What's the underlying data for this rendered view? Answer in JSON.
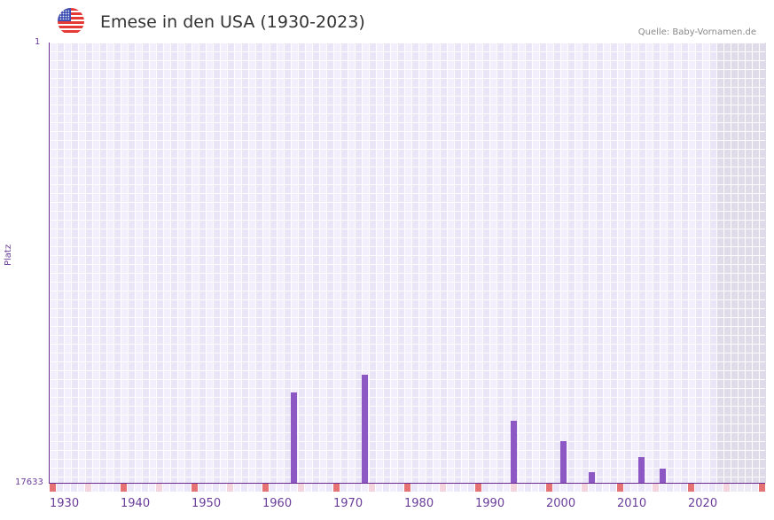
{
  "header": {
    "flag_icon": "us-flag-icon",
    "title": "Emese in den USA (1930-2023)",
    "source": "Quelle: Baby-Vornamen.de"
  },
  "colors": {
    "bar": "#8e58c4",
    "axis": "#6a2c91",
    "decade_marker": "#e57373",
    "half_decade_marker": "#f5d5dd",
    "grid_bg_a": "#f2eefb",
    "grid_bg_b": "#ebe6f7",
    "future_bg": "#e0dbe9"
  },
  "axis": {
    "y_top_label": "1",
    "y_bottom_label": "17633",
    "y_title": "Platz",
    "x_ticks": [
      "1930",
      "1940",
      "1950",
      "1960",
      "1970",
      "1980",
      "1990",
      "2000",
      "2010",
      "2020"
    ]
  },
  "chart_data": {
    "type": "bar",
    "title": "Emese in den USA (1930-2023)",
    "xlabel": "",
    "ylabel": "Platz",
    "ylim": [
      17633,
      1
    ],
    "y_inverted": true,
    "x_range": [
      1930,
      2030
    ],
    "x_ticks": [
      1930,
      1940,
      1950,
      1960,
      1970,
      1980,
      1990,
      2000,
      2010,
      2020
    ],
    "categories": [
      "1964",
      "1974",
      "1995",
      "2002",
      "2006",
      "2013",
      "2016"
    ],
    "values": [
      14000,
      13300,
      15150,
      15950,
      17200,
      16600,
      17050
    ],
    "grid": true,
    "legend": null,
    "annotations": [
      "Quelle: Baby-Vornamen.de"
    ]
  }
}
